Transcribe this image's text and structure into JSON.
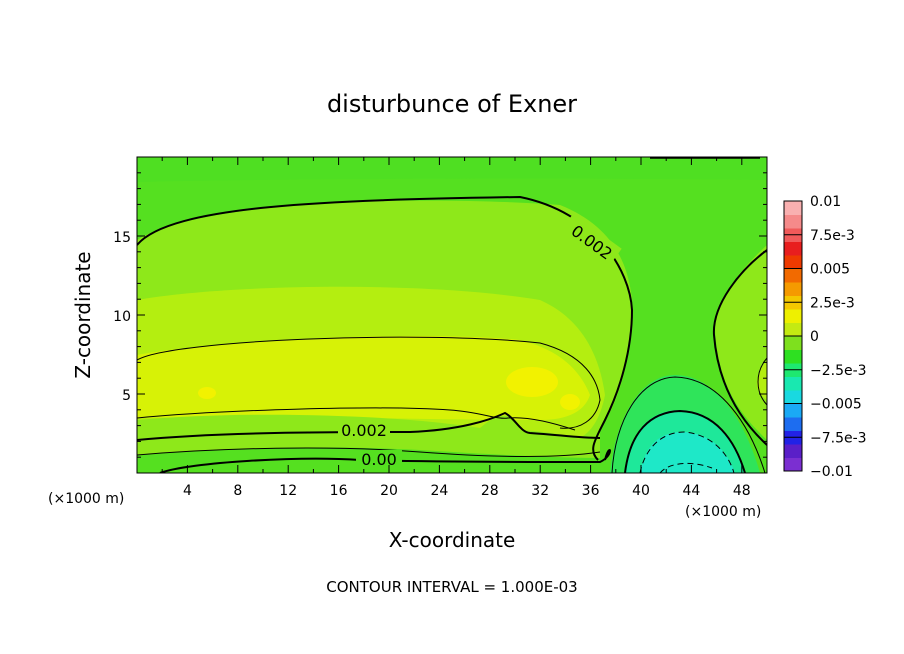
{
  "chart_data": {
    "type": "contour",
    "title": "disturbunce of Exner",
    "xlabel": "X-coordinate",
    "ylabel": "Z-coordinate",
    "x_unit_left": "(×1000 m)",
    "x_unit_right": "(×1000 m)",
    "footer": "CONTOUR INTERVAL = 1.000E-03",
    "xlim": [
      0,
      50
    ],
    "ylim": [
      0,
      20
    ],
    "x_ticks": [
      "4",
      "8",
      "12",
      "16",
      "20",
      "24",
      "28",
      "32",
      "36",
      "40",
      "44",
      "48"
    ],
    "x_tick_values": [
      4,
      8,
      12,
      16,
      20,
      24,
      28,
      32,
      36,
      40,
      44,
      48
    ],
    "y_ticks": [
      "5",
      "10",
      "15"
    ],
    "y_tick_values": [
      5,
      10,
      15
    ],
    "contour_interval": 0.001,
    "contour_labels": [
      {
        "text": "0.002",
        "x": 37.5,
        "z": 14.2,
        "rotate": 36
      },
      {
        "text": "0.002",
        "x": 18.0,
        "z": 2.6,
        "rotate": 0
      },
      {
        "text": "0.00",
        "x": 19.0,
        "z": 0.8,
        "rotate": 0
      }
    ],
    "colorbar": {
      "min": -0.01,
      "max": 0.01,
      "tick_labels": [
        "0.01",
        "7.5e-3",
        "0.005",
        "2.5e-3",
        "0",
        "−2.5e-3",
        "−0.005",
        "−7.5e-3",
        "−0.01"
      ],
      "tick_values": [
        0.01,
        0.0075,
        0.005,
        0.0025,
        0,
        -0.0025,
        -0.005,
        -0.0075,
        -0.01
      ],
      "colors": [
        "#7b2fd1",
        "#5a1fc8",
        "#2222e6",
        "#1d6df0",
        "#1aa9f5",
        "#19d9e0",
        "#19e8b0",
        "#1ee870",
        "#2ee021",
        "#7ee01e",
        "#c4ea12",
        "#eef000",
        "#f4c800",
        "#f59a00",
        "#f26a00",
        "#ee3a00",
        "#e81e1e",
        "#f05a5a",
        "#f58a8a",
        "#f9b0b0"
      ]
    },
    "field_regions": [
      {
        "level": 0.0005,
        "color": "#55e020"
      },
      {
        "level": 0.0015,
        "color": "#8ee81a"
      },
      {
        "level": 0.0025,
        "color": "#b4ee10"
      },
      {
        "level": 0.0035,
        "color": "#d7f206"
      },
      {
        "level": 0.0045,
        "color": "#f2f200"
      },
      {
        "level": -0.0005,
        "color": "#2fe45a"
      },
      {
        "level": -0.0015,
        "color": "#1ee89a"
      },
      {
        "level": -0.0025,
        "color": "#1ee8c8"
      }
    ]
  }
}
